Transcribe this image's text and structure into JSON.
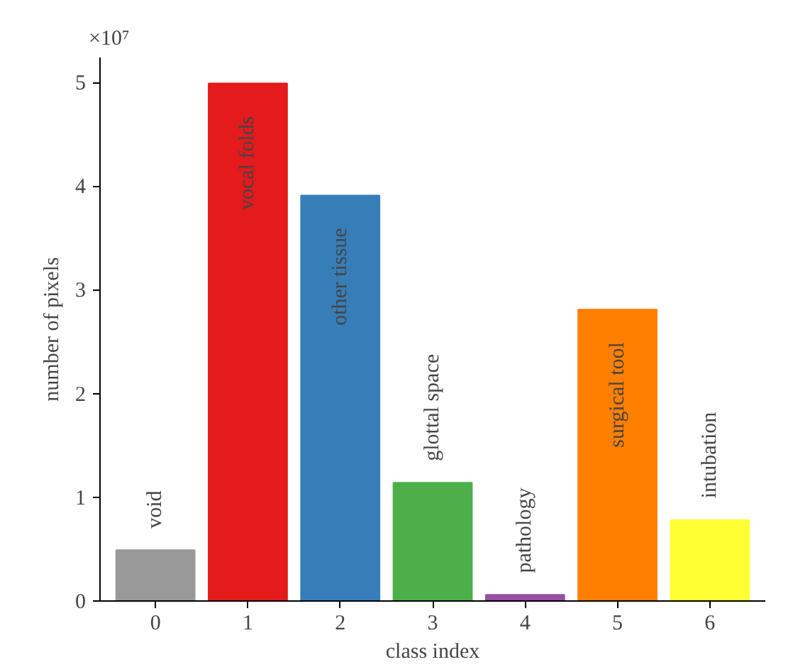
{
  "chart_data": {
    "type": "bar",
    "xlabel": "class index",
    "ylabel": "number of pixels",
    "categories": [
      "0",
      "1",
      "2",
      "3",
      "4",
      "5",
      "6"
    ],
    "values": [
      0.49,
      4.99,
      3.91,
      1.14,
      0.06,
      2.81,
      0.78
    ],
    "colors": [
      "#999999",
      "#e41a1c",
      "#377eb8",
      "#4daf4a",
      "#984ea3",
      "#ff7f00",
      "#ffff33"
    ],
    "ylim": [
      0,
      5.24
    ],
    "yticks": [
      0,
      1,
      2,
      3,
      4,
      5
    ],
    "grid": false,
    "annotations": [
      "×10⁷",
      {
        "text": "void",
        "x": "0",
        "y": 0.49
      },
      {
        "text": "vocal folds",
        "x": "1",
        "y": 4.99
      },
      {
        "text": "other tissue",
        "x": "2",
        "y": 3.91
      },
      {
        "text": "glottal space",
        "x": "3",
        "y": 1.14
      },
      {
        "text": "pathology",
        "x": "4",
        "y": 0.06
      },
      {
        "text": "surgical tool",
        "x": "5",
        "y": 2.81
      },
      {
        "text": "intubation",
        "x": "6",
        "y": 0.78
      }
    ]
  }
}
